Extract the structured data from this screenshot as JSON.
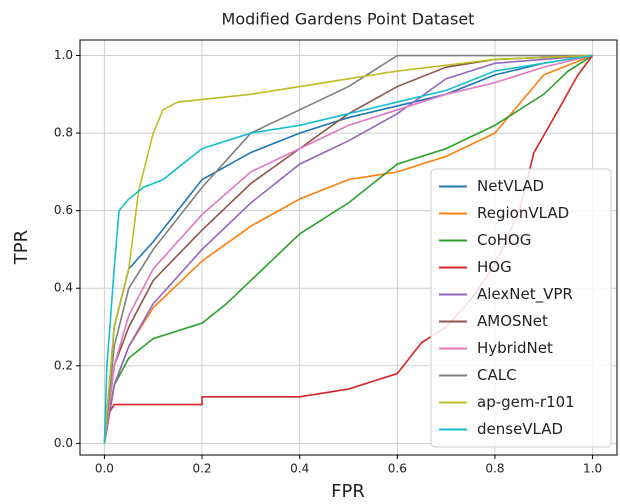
{
  "chart_data": {
    "type": "line",
    "title": "Modified Gardens Point Dataset",
    "x_label": "FPR",
    "y_label": "TPR",
    "xlim": [
      -0.05,
      1.05
    ],
    "ylim": [
      -0.03,
      1.04
    ],
    "xticks": [
      {
        "value": 0,
        "label": "0.0"
      },
      {
        "value": 0.2,
        "label": "0.2"
      },
      {
        "value": 0.4,
        "label": "0.4"
      },
      {
        "value": 0.6,
        "label": "0.6"
      },
      {
        "value": 0.8,
        "label": "0.8"
      },
      {
        "value": 1,
        "label": "1.0"
      }
    ],
    "yticks": [
      {
        "value": 0,
        "label": "0.0"
      },
      {
        "value": 0.2,
        "label": "0.2"
      },
      {
        "value": 0.4,
        "label": "0.4"
      },
      {
        "value": 0.6,
        "label": "0.6"
      },
      {
        "value": 0.8,
        "label": "0.8"
      },
      {
        "value": 1,
        "label": "1.0"
      }
    ],
    "grid": true,
    "legend": "lower right",
    "series": [
      {
        "name": "NetVLAD",
        "color": "#1f77b4",
        "x": [
          0,
          0.02,
          0.05,
          0.1,
          0.15,
          0.2,
          0.3,
          0.4,
          0.5,
          0.6,
          0.7,
          0.8,
          0.9,
          1
        ],
        "values": [
          0,
          0.3,
          0.45,
          0.52,
          0.6,
          0.68,
          0.75,
          0.8,
          0.84,
          0.87,
          0.9,
          0.95,
          0.98,
          1
        ]
      },
      {
        "name": "RegionVLAD",
        "color": "#ff7f0e",
        "x": [
          0,
          0.02,
          0.05,
          0.1,
          0.2,
          0.3,
          0.4,
          0.5,
          0.6,
          0.7,
          0.8,
          0.9,
          1
        ],
        "values": [
          0,
          0.15,
          0.25,
          0.35,
          0.47,
          0.56,
          0.63,
          0.68,
          0.7,
          0.74,
          0.8,
          0.95,
          1
        ]
      },
      {
        "name": "CoHOG",
        "color": "#2ca02c",
        "x": [
          0,
          0.02,
          0.05,
          0.1,
          0.2,
          0.25,
          0.3,
          0.35,
          0.4,
          0.5,
          0.6,
          0.7,
          0.8,
          0.9,
          0.95,
          1
        ],
        "values": [
          0,
          0.15,
          0.22,
          0.27,
          0.31,
          0.36,
          0.42,
          0.48,
          0.54,
          0.62,
          0.72,
          0.76,
          0.82,
          0.9,
          0.96,
          1
        ]
      },
      {
        "name": "HOG",
        "color": "#d62728",
        "x": [
          0,
          0.01,
          0.02,
          0.2,
          0.2,
          0.4,
          0.5,
          0.6,
          0.65,
          0.7,
          0.75,
          0.8,
          0.85,
          0.88,
          0.93,
          0.97,
          1
        ],
        "values": [
          0,
          0.08,
          0.1,
          0.1,
          0.12,
          0.12,
          0.14,
          0.18,
          0.26,
          0.3,
          0.37,
          0.46,
          0.6,
          0.75,
          0.86,
          0.95,
          1
        ]
      },
      {
        "name": "AlexNet_VPR",
        "color": "#9467bd",
        "x": [
          0,
          0.02,
          0.05,
          0.1,
          0.2,
          0.3,
          0.4,
          0.5,
          0.6,
          0.7,
          0.8,
          1
        ],
        "values": [
          0,
          0.15,
          0.25,
          0.36,
          0.5,
          0.62,
          0.72,
          0.78,
          0.85,
          0.94,
          0.98,
          1
        ]
      },
      {
        "name": "AMOSNet",
        "color": "#8c564b",
        "x": [
          0,
          0.02,
          0.05,
          0.1,
          0.2,
          0.3,
          0.4,
          0.5,
          0.6,
          0.7,
          0.8,
          1
        ],
        "values": [
          0,
          0.2,
          0.3,
          0.42,
          0.55,
          0.67,
          0.76,
          0.85,
          0.92,
          0.97,
          0.99,
          1
        ]
      },
      {
        "name": "HybridNet",
        "color": "#e377c2",
        "x": [
          0,
          0.02,
          0.05,
          0.1,
          0.2,
          0.3,
          0.4,
          0.5,
          0.6,
          0.7,
          0.8,
          0.9,
          1
        ],
        "values": [
          0,
          0.2,
          0.33,
          0.45,
          0.59,
          0.7,
          0.76,
          0.82,
          0.86,
          0.9,
          0.93,
          0.97,
          1
        ]
      },
      {
        "name": "CALC",
        "color": "#7f7f7f",
        "x": [
          0,
          0.02,
          0.05,
          0.1,
          0.15,
          0.2,
          0.3,
          0.4,
          0.5,
          0.6,
          1
        ],
        "values": [
          0,
          0.25,
          0.4,
          0.5,
          0.58,
          0.66,
          0.8,
          0.86,
          0.92,
          1,
          1
        ]
      },
      {
        "name": "ap-gem-r101",
        "color": "#bcbd22",
        "x": [
          0,
          0.02,
          0.05,
          0.07,
          0.09,
          0.1,
          0.12,
          0.15,
          0.3,
          0.4,
          0.5,
          0.6,
          0.8,
          1
        ],
        "values": [
          0,
          0.3,
          0.45,
          0.65,
          0.75,
          0.8,
          0.86,
          0.88,
          0.9,
          0.92,
          0.94,
          0.96,
          0.99,
          1
        ]
      },
      {
        "name": "denseVLAD",
        "color": "#17becf",
        "x": [
          0,
          0.005,
          0.01,
          0.02,
          0.03,
          0.05,
          0.08,
          0.12,
          0.2,
          0.3,
          0.4,
          0.5,
          0.6,
          0.7,
          0.8,
          0.9,
          1
        ],
        "values": [
          0,
          0.2,
          0.28,
          0.45,
          0.6,
          0.63,
          0.66,
          0.68,
          0.76,
          0.8,
          0.82,
          0.85,
          0.88,
          0.91,
          0.96,
          0.98,
          1
        ]
      }
    ]
  }
}
